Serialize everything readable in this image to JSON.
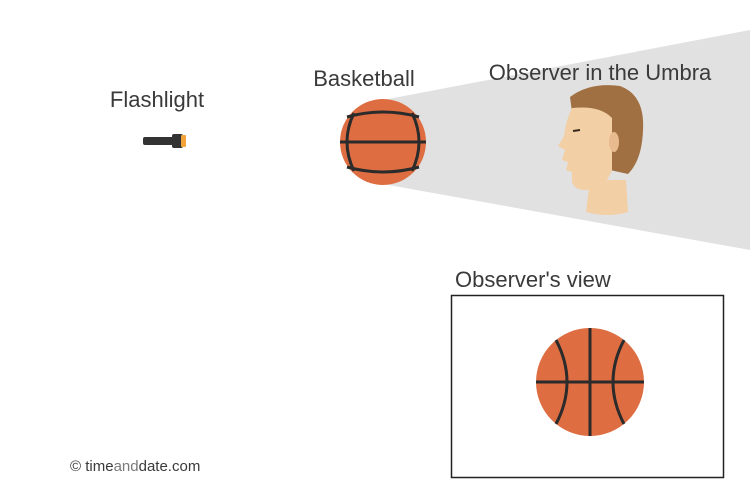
{
  "labels": {
    "flashlight": "Flashlight",
    "basketball": "Basketball",
    "observer": "Observer in the Umbra",
    "observer_view": "Observer's view"
  },
  "credit": {
    "symbol": "©",
    "part1": "time",
    "part2": "and",
    "part3": "date.com"
  },
  "colors": {
    "ball": "#de6e42",
    "ball_lines": "#2b2b2b",
    "shadow": "#e1e1e1",
    "skin": "#f3cfa6",
    "hair": "#a06f42",
    "flashlight_body": "#333333",
    "flashlight_lens": "#f2a43a"
  }
}
